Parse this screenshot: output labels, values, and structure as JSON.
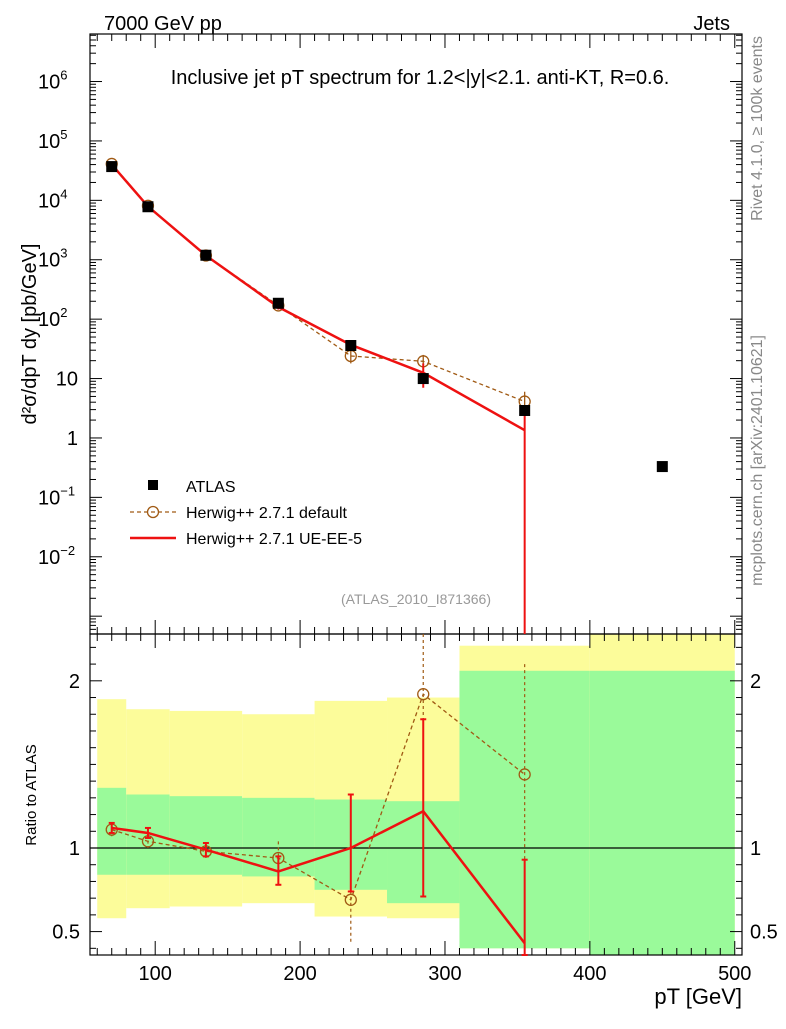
{
  "header": {
    "energy_label": "7000 GeV pp",
    "jets_label": "Jets",
    "side_label_top": "Rivet 4.1.0, ≥ 100k events",
    "side_label_bottom": "mcplots.cern.ch [arXiv:2401.10621]",
    "analysis_id": "(ATLAS_2010_I871366)"
  },
  "colors": {
    "atlas": "#000000",
    "herwig_default": "#a05a14",
    "herwig_ueee5": "#ee1111",
    "band_inner": "#9afa9a",
    "band_outer": "#fcfc9a"
  },
  "chart_data": {
    "type": "line",
    "title": "Inclusive jet pT spectrum for 1.2<|y|<2.1.  anti-KT, R=0.6.",
    "xlabel": "pT [GeV]",
    "ylabel": "d²σ/dpT dy [pb/GeV]",
    "ratio_ylabel": "Ratio to ATLAS",
    "xlim": [
      55,
      505
    ],
    "ylim_log10": [
      -3.3,
      6.8
    ],
    "ratio_ylim": [
      0.36,
      2.28
    ],
    "x_ticks": [
      100,
      200,
      300,
      400,
      500
    ],
    "y_ticks": [
      {
        "exp": 6,
        "label": "10",
        "sup": "6"
      },
      {
        "exp": 5,
        "label": "10",
        "sup": "5"
      },
      {
        "exp": 4,
        "label": "10",
        "sup": "4"
      },
      {
        "exp": 3,
        "label": "10",
        "sup": "3"
      },
      {
        "exp": 2,
        "label": "10",
        "sup": "2"
      },
      {
        "exp": 1,
        "label": "10",
        "sup": ""
      },
      {
        "exp": 0,
        "label": "1",
        "sup": ""
      },
      {
        "exp": -1,
        "label": "10",
        "sup": "−1"
      },
      {
        "exp": -2,
        "label": "10",
        "sup": "−2"
      }
    ],
    "ratio_ticks": [
      {
        "value": 0.5,
        "label": "0.5"
      },
      {
        "value": 1,
        "label": "1"
      },
      {
        "value": 2,
        "label": "2"
      }
    ],
    "legend": [
      "ATLAS",
      "Herwig++ 2.7.1 default",
      "Herwig++ 2.7.1 UE-EE-5"
    ],
    "atlas": {
      "x": [
        70,
        95,
        135,
        185,
        235,
        285,
        355,
        450
      ],
      "y": [
        37000,
        7800,
        1190,
        185,
        36,
        10,
        2.9,
        0.33
      ],
      "bins": [
        [
          60,
          80
        ],
        [
          80,
          110
        ],
        [
          110,
          160
        ],
        [
          160,
          210
        ],
        [
          210,
          260
        ],
        [
          260,
          310
        ],
        [
          310,
          400
        ],
        [
          400,
          500
        ]
      ],
      "ratio_band_inner": [
        [
          0.84,
          1.36
        ],
        [
          0.84,
          1.32
        ],
        [
          0.84,
          1.31
        ],
        [
          0.83,
          1.3
        ],
        [
          0.75,
          1.29
        ],
        [
          0.67,
          1.28
        ],
        [
          0.4,
          2.06
        ],
        [
          0.35,
          2.06
        ]
      ],
      "ratio_band_outer": [
        [
          0.58,
          1.89
        ],
        [
          0.64,
          1.83
        ],
        [
          0.65,
          1.82
        ],
        [
          0.67,
          1.8
        ],
        [
          0.59,
          1.88
        ],
        [
          0.58,
          1.9
        ],
        [
          0.4,
          2.21
        ],
        [
          0.35,
          2.3
        ]
      ]
    },
    "series": [
      {
        "name": "Herwig++ 2.7.1 default",
        "x": [
          70,
          95,
          135,
          185,
          235,
          285,
          355
        ],
        "y": [
          41000,
          8100,
          1180,
          170,
          24,
          19.5,
          4.1
        ],
        "y_err_low": [
          39000,
          7700,
          1100,
          150,
          18,
          15,
          3
        ],
        "y_err_high": [
          43000,
          8500,
          1260,
          190,
          30,
          25,
          6
        ],
        "ratio": [
          1.11,
          1.04,
          0.98,
          0.94,
          0.69,
          1.92,
          1.44
        ],
        "ratio_err": [
          [
            1.07,
            1.15
          ],
          [
            1.0,
            1.08
          ],
          [
            0.94,
            1.03
          ],
          [
            0.86,
            1.04
          ],
          [
            0.43,
            0.96
          ],
          [
            1.3,
            3.0
          ],
          [
            0.9,
            2.1
          ]
        ]
      },
      {
        "name": "Herwig++ 2.7.1 UE-EE-5",
        "x": [
          70,
          95,
          135,
          185,
          235,
          285,
          355
        ],
        "y": [
          40000,
          7900,
          1180,
          160,
          37,
          12.5,
          1.35
        ],
        "y_err_low": [
          39000,
          7600,
          1120,
          145,
          31,
          7,
          0.0001
        ],
        "y_err_high": [
          41000,
          8200,
          1240,
          175,
          43,
          18,
          2.5
        ],
        "ratio": [
          1.12,
          1.09,
          0.99,
          0.86,
          1.0,
          1.22,
          0.43
        ],
        "ratio_err": [
          [
            1.09,
            1.15
          ],
          [
            1.06,
            1.12
          ],
          [
            0.95,
            1.03
          ],
          [
            0.78,
            0.95
          ],
          [
            0.74,
            1.32
          ],
          [
            0.71,
            1.77
          ],
          [
            0.3,
            0.93
          ]
        ]
      }
    ]
  }
}
